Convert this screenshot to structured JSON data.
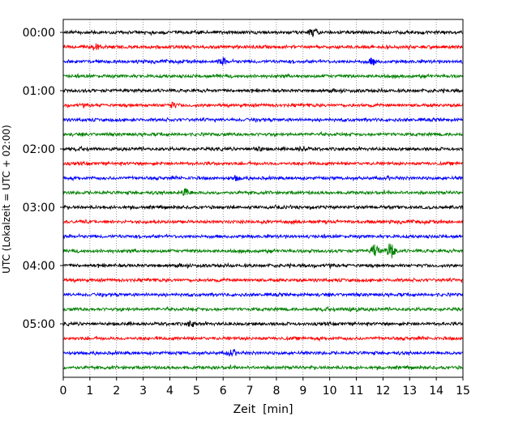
{
  "chart_data": {
    "type": "line",
    "subtype": "helicorder",
    "xlabel": "Zeit  [min]",
    "ylabel": "UTC (Lokalzeit = UTC + 02:00)",
    "xlim": [
      0,
      15
    ],
    "x_ticks": [
      "0",
      "1",
      "2",
      "3",
      "4",
      "5",
      "6",
      "7",
      "8",
      "9",
      "10",
      "11",
      "12",
      "13",
      "14",
      "15"
    ],
    "y_tick_labels": [
      "00:00",
      "01:00",
      "02:00",
      "03:00",
      "04:00",
      "05:00"
    ],
    "grid": "vertical dotted at each minute",
    "trace_interval_minutes": 15,
    "trace_colors": [
      "#000000",
      "#ff0000",
      "#0000ff",
      "#008000"
    ],
    "trace_count": 24,
    "traces": [
      {
        "start": "00:00",
        "color": "#000000",
        "events": [
          [
            9.4,
            1.4
          ]
        ]
      },
      {
        "start": "00:15",
        "color": "#ff0000",
        "events": [
          [
            1.2,
            1.0
          ]
        ]
      },
      {
        "start": "00:30",
        "color": "#0000ff",
        "events": [
          [
            6.0,
            1.0
          ],
          [
            11.6,
            1.0
          ]
        ]
      },
      {
        "start": "00:45",
        "color": "#008000",
        "events": []
      },
      {
        "start": "01:00",
        "color": "#000000",
        "events": []
      },
      {
        "start": "01:15",
        "color": "#ff0000",
        "events": [
          [
            4.1,
            0.8
          ]
        ]
      },
      {
        "start": "01:30",
        "color": "#0000ff",
        "events": []
      },
      {
        "start": "01:45",
        "color": "#008000",
        "events": []
      },
      {
        "start": "02:00",
        "color": "#000000",
        "events": [
          [
            7.3,
            0.8
          ],
          [
            9.0,
            0.8
          ]
        ]
      },
      {
        "start": "02:15",
        "color": "#ff0000",
        "events": []
      },
      {
        "start": "02:30",
        "color": "#0000ff",
        "events": [
          [
            6.5,
            0.8
          ]
        ]
      },
      {
        "start": "02:45",
        "color": "#008000",
        "events": [
          [
            4.6,
            1.4
          ]
        ]
      },
      {
        "start": "03:00",
        "color": "#000000",
        "events": []
      },
      {
        "start": "03:15",
        "color": "#ff0000",
        "events": []
      },
      {
        "start": "03:30",
        "color": "#0000ff",
        "events": []
      },
      {
        "start": "03:45",
        "color": "#008000",
        "events": [
          [
            11.7,
            2.2
          ],
          [
            12.3,
            3.0
          ]
        ]
      },
      {
        "start": "04:00",
        "color": "#000000",
        "events": []
      },
      {
        "start": "04:15",
        "color": "#ff0000",
        "events": []
      },
      {
        "start": "04:30",
        "color": "#0000ff",
        "events": []
      },
      {
        "start": "04:45",
        "color": "#008000",
        "events": [
          [
            10.9,
            1.0
          ]
        ]
      },
      {
        "start": "05:00",
        "color": "#000000",
        "events": [
          [
            4.8,
            0.8
          ]
        ]
      },
      {
        "start": "05:15",
        "color": "#ff0000",
        "events": []
      },
      {
        "start": "05:30",
        "color": "#0000ff",
        "events": [
          [
            6.3,
            0.8
          ]
        ]
      },
      {
        "start": "05:45",
        "color": "#008000",
        "events": []
      }
    ]
  }
}
